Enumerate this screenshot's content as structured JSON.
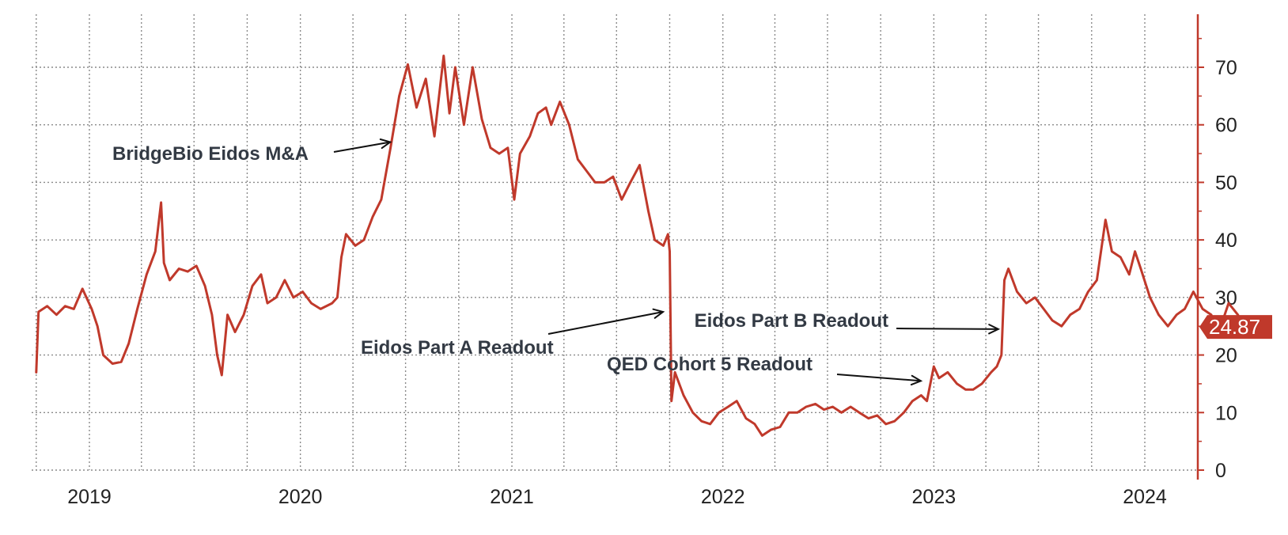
{
  "chart_data": {
    "type": "line",
    "title": "",
    "xlabel": "",
    "ylabel": "",
    "ylim": [
      0,
      78
    ],
    "y_ticks": [
      0,
      10,
      20,
      30,
      40,
      50,
      60,
      70
    ],
    "y_axis_side": "right",
    "grid": true,
    "line_color": "#c0392b",
    "x_tick_labels": [
      {
        "label": "2019",
        "date": "2019-01-01"
      },
      {
        "label": "2020",
        "date": "2020-01-01"
      },
      {
        "label": "2021",
        "date": "2021-01-01"
      },
      {
        "label": "2022",
        "date": "2022-01-01"
      },
      {
        "label": "2023",
        "date": "2023-01-01"
      },
      {
        "label": "2024",
        "date": "2024-01-01"
      }
    ],
    "last_value": {
      "label": "24.87",
      "value": 24.87,
      "color": "#c0392b"
    },
    "series": [
      {
        "points": [
          [
            "2018-10-01",
            17.0
          ],
          [
            "2018-10-05",
            27.5
          ],
          [
            "2018-10-20",
            28.5
          ],
          [
            "2018-11-05",
            27.0
          ],
          [
            "2018-11-20",
            28.5
          ],
          [
            "2018-12-05",
            28.0
          ],
          [
            "2018-12-20",
            31.5
          ],
          [
            "2019-01-05",
            28.0
          ],
          [
            "2019-01-15",
            25.0
          ],
          [
            "2019-01-25",
            20.0
          ],
          [
            "2019-02-10",
            18.5
          ],
          [
            "2019-02-25",
            18.8
          ],
          [
            "2019-03-10",
            22.0
          ],
          [
            "2019-03-25",
            28.0
          ],
          [
            "2019-04-10",
            34.0
          ],
          [
            "2019-04-25",
            38.0
          ],
          [
            "2019-05-05",
            46.5
          ],
          [
            "2019-05-10",
            36.0
          ],
          [
            "2019-05-20",
            33.0
          ],
          [
            "2019-06-05",
            35.0
          ],
          [
            "2019-06-20",
            34.5
          ],
          [
            "2019-07-05",
            35.5
          ],
          [
            "2019-07-20",
            32.0
          ],
          [
            "2019-08-01",
            27.0
          ],
          [
            "2019-08-10",
            20.0
          ],
          [
            "2019-08-18",
            16.5
          ],
          [
            "2019-08-28",
            27.0
          ],
          [
            "2019-09-10",
            24.0
          ],
          [
            "2019-09-25",
            27.0
          ],
          [
            "2019-10-10",
            32.0
          ],
          [
            "2019-10-25",
            34.0
          ],
          [
            "2019-11-05",
            29.0
          ],
          [
            "2019-11-20",
            30.0
          ],
          [
            "2019-12-05",
            33.0
          ],
          [
            "2019-12-20",
            30.0
          ],
          [
            "2020-01-05",
            31.0
          ],
          [
            "2020-01-20",
            29.0
          ],
          [
            "2020-02-05",
            28.0
          ],
          [
            "2020-02-25",
            29.0
          ],
          [
            "2020-03-05",
            30.0
          ],
          [
            "2020-03-12",
            37.0
          ],
          [
            "2020-03-20",
            41.0
          ],
          [
            "2020-04-05",
            39.0
          ],
          [
            "2020-04-20",
            40.0
          ],
          [
            "2020-05-05",
            44.0
          ],
          [
            "2020-05-20",
            47.0
          ],
          [
            "2020-06-05",
            56.0
          ],
          [
            "2020-06-20",
            65.0
          ],
          [
            "2020-07-05",
            70.5
          ],
          [
            "2020-07-20",
            63.0
          ],
          [
            "2020-08-05",
            68.0
          ],
          [
            "2020-08-20",
            58.0
          ],
          [
            "2020-09-05",
            72.0
          ],
          [
            "2020-09-15",
            62.0
          ],
          [
            "2020-09-25",
            70.0
          ],
          [
            "2020-10-10",
            60.0
          ],
          [
            "2020-10-25",
            70.0
          ],
          [
            "2020-11-10",
            61.0
          ],
          [
            "2020-11-25",
            56.0
          ],
          [
            "2020-12-10",
            55.0
          ],
          [
            "2020-12-25",
            56.0
          ],
          [
            "2021-01-05",
            47.0
          ],
          [
            "2021-01-15",
            55.0
          ],
          [
            "2021-02-01",
            58.0
          ],
          [
            "2021-02-15",
            62.0
          ],
          [
            "2021-03-01",
            63.0
          ],
          [
            "2021-03-10",
            60.0
          ],
          [
            "2021-03-25",
            64.0
          ],
          [
            "2021-04-10",
            60.0
          ],
          [
            "2021-04-25",
            54.0
          ],
          [
            "2021-05-10",
            52.0
          ],
          [
            "2021-05-25",
            50.0
          ],
          [
            "2021-06-10",
            50.0
          ],
          [
            "2021-06-25",
            51.0
          ],
          [
            "2021-07-10",
            47.0
          ],
          [
            "2021-07-25",
            50.0
          ],
          [
            "2021-08-10",
            53.0
          ],
          [
            "2021-08-25",
            45.0
          ],
          [
            "2021-09-05",
            40.0
          ],
          [
            "2021-09-20",
            39.0
          ],
          [
            "2021-09-28",
            41.0
          ],
          [
            "2021-10-01",
            38.0
          ],
          [
            "2021-10-04",
            12.0
          ],
          [
            "2021-10-10",
            17.0
          ],
          [
            "2021-10-25",
            13.0
          ],
          [
            "2021-11-10",
            10.0
          ],
          [
            "2021-11-25",
            8.5
          ],
          [
            "2021-12-10",
            8.0
          ],
          [
            "2021-12-25",
            10.0
          ],
          [
            "2022-01-10",
            11.0
          ],
          [
            "2022-01-25",
            12.0
          ],
          [
            "2022-02-10",
            9.0
          ],
          [
            "2022-02-25",
            8.0
          ],
          [
            "2022-03-10",
            6.0
          ],
          [
            "2022-03-25",
            7.0
          ],
          [
            "2022-04-10",
            7.5
          ],
          [
            "2022-04-25",
            10.0
          ],
          [
            "2022-05-10",
            10.0
          ],
          [
            "2022-05-25",
            11.0
          ],
          [
            "2022-06-10",
            11.5
          ],
          [
            "2022-06-25",
            10.5
          ],
          [
            "2022-07-10",
            11.0
          ],
          [
            "2022-07-25",
            10.0
          ],
          [
            "2022-08-10",
            11.0
          ],
          [
            "2022-08-25",
            10.0
          ],
          [
            "2022-09-10",
            9.0
          ],
          [
            "2022-09-25",
            9.5
          ],
          [
            "2022-10-10",
            8.0
          ],
          [
            "2022-10-25",
            8.5
          ],
          [
            "2022-11-10",
            10.0
          ],
          [
            "2022-11-25",
            12.0
          ],
          [
            "2022-12-10",
            13.0
          ],
          [
            "2022-12-20",
            12.0
          ],
          [
            "2023-01-01",
            18.0
          ],
          [
            "2023-01-10",
            16.0
          ],
          [
            "2023-01-25",
            17.0
          ],
          [
            "2023-02-10",
            15.0
          ],
          [
            "2023-02-25",
            14.0
          ],
          [
            "2023-03-10",
            14.0
          ],
          [
            "2023-03-25",
            15.0
          ],
          [
            "2023-04-10",
            17.0
          ],
          [
            "2023-04-20",
            18.0
          ],
          [
            "2023-04-28",
            20.0
          ],
          [
            "2023-05-03",
            33.0
          ],
          [
            "2023-05-10",
            35.0
          ],
          [
            "2023-05-25",
            31.0
          ],
          [
            "2023-06-10",
            29.0
          ],
          [
            "2023-06-25",
            30.0
          ],
          [
            "2023-07-10",
            28.0
          ],
          [
            "2023-07-25",
            26.0
          ],
          [
            "2023-08-10",
            25.0
          ],
          [
            "2023-08-25",
            27.0
          ],
          [
            "2023-09-10",
            28.0
          ],
          [
            "2023-09-25",
            31.0
          ],
          [
            "2023-10-10",
            33.0
          ],
          [
            "2023-10-20",
            40.0
          ],
          [
            "2023-10-25",
            43.5
          ],
          [
            "2023-11-05",
            38.0
          ],
          [
            "2023-11-20",
            37.0
          ],
          [
            "2023-12-05",
            34.0
          ],
          [
            "2023-12-15",
            38.0
          ],
          [
            "2023-12-25",
            35.0
          ],
          [
            "2024-01-10",
            30.0
          ],
          [
            "2024-01-25",
            27.0
          ],
          [
            "2024-02-10",
            25.0
          ],
          [
            "2024-02-25",
            27.0
          ],
          [
            "2024-03-10",
            28.0
          ],
          [
            "2024-03-25",
            31.0
          ],
          [
            "2024-04-10",
            28.0
          ],
          [
            "2024-04-25",
            27.0
          ],
          [
            "2024-05-05",
            24.0
          ],
          [
            "2024-05-15",
            26.0
          ],
          [
            "2024-05-25",
            29.0
          ],
          [
            "2024-06-10",
            27.0
          ],
          [
            "2024-06-20",
            25.0
          ]
        ]
      }
    ],
    "annotations": [
      {
        "text": "BridgeBio Eidos M&A",
        "date": "2020-06-10",
        "value": 57
      },
      {
        "text": "Eidos Part A Readout",
        "date": "2021-09-25",
        "value": 27.5
      },
      {
        "text": "QED Cohort 5 Readout",
        "date": "2022-12-15",
        "value": 15.5
      },
      {
        "text": "Eidos Part B Readout",
        "date": "2023-04-28",
        "value": 24.5
      }
    ]
  }
}
